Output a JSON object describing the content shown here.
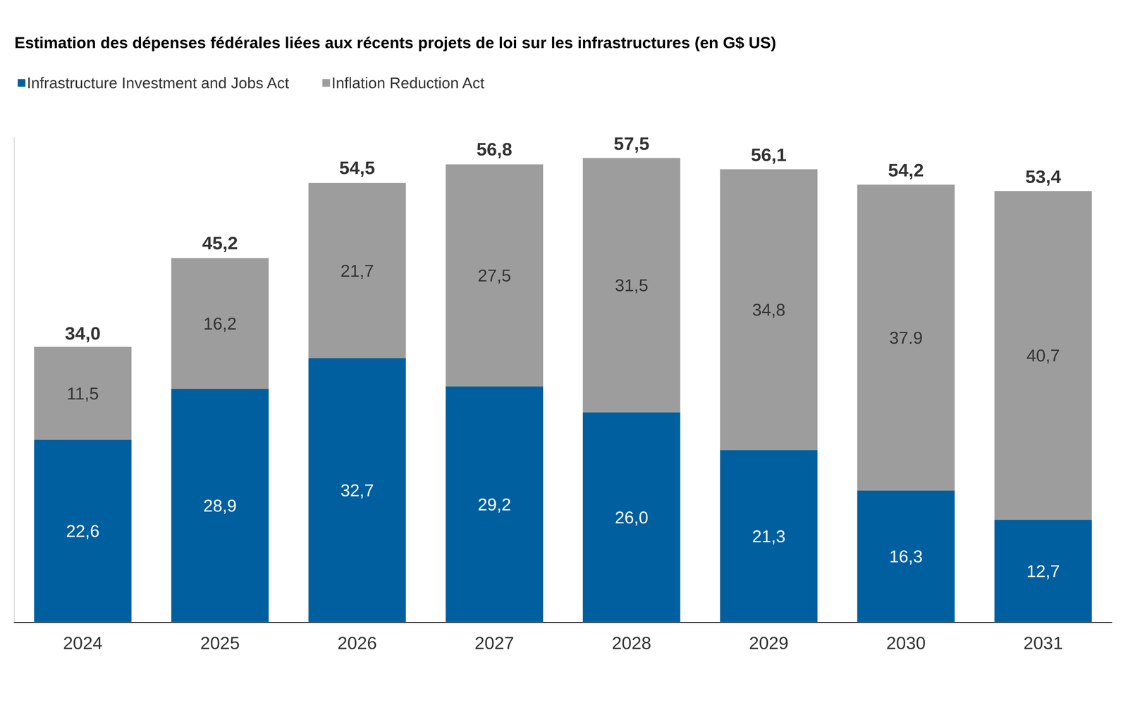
{
  "chart_data": {
    "type": "bar",
    "title": "Estimation des dépenses fédérales liées aux récents projets de loi sur les infrastructures (en G$ US)",
    "categories": [
      "2024",
      "2025",
      "2026",
      "2027",
      "2028",
      "2029",
      "2030",
      "2031"
    ],
    "series": [
      {
        "name": "Infrastructure Investment and Jobs Act",
        "color": "#005f9e",
        "values": [
          22.6,
          28.9,
          32.7,
          29.2,
          26.0,
          21.3,
          16.3,
          12.7
        ],
        "value_labels": [
          "22,6",
          "28,9",
          "32,7",
          "29,2",
          "26,0",
          "21,3",
          "16,3",
          "12,7"
        ]
      },
      {
        "name": "Inflation Reduction Act",
        "color": "#9d9d9d",
        "values": [
          11.5,
          16.2,
          21.7,
          27.5,
          31.5,
          34.8,
          37.9,
          40.7
        ],
        "value_labels": [
          "11,5",
          "16,2",
          "21,7",
          "27,5",
          "31,5",
          "34,8",
          "37.9",
          "40,7"
        ]
      }
    ],
    "totals": [
      34.0,
      45.2,
      54.5,
      56.8,
      57.5,
      56.1,
      54.2,
      53.4
    ],
    "total_labels": [
      "34,0",
      "45,2",
      "54,5",
      "56,8",
      "57,5",
      "56,1",
      "54,2",
      "53,4"
    ],
    "ylim": [
      0,
      60
    ],
    "stacked": true,
    "data_labels": true,
    "tick_labels": "x",
    "grid": false,
    "legend": "top-left"
  }
}
